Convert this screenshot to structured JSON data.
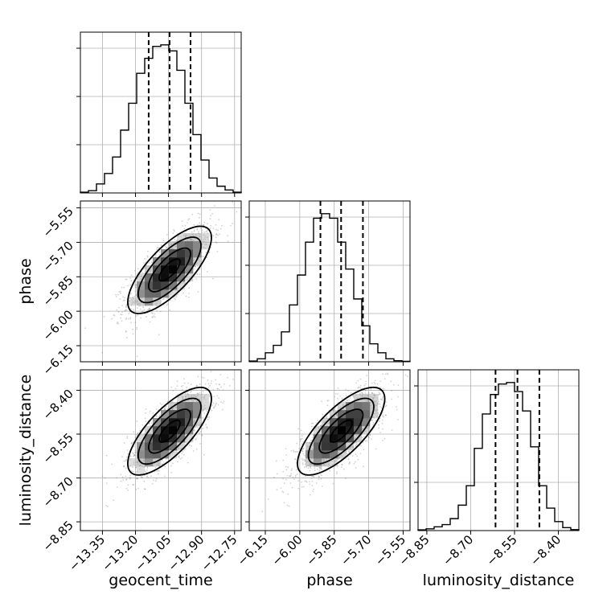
{
  "chart_data": {
    "type": "corner",
    "parameters": [
      {
        "key": "geocent_time",
        "label": "geocent_time",
        "range": [
          -13.45,
          -12.72
        ],
        "ticks": [
          -13.35,
          -13.2,
          -13.05,
          -12.9,
          -12.75
        ],
        "tick_labels": [
          "−13.35",
          "−13.20",
          "−13.05",
          "−12.90",
          "−12.75"
        ],
        "quantiles": [
          -13.14,
          -13.045,
          -12.95
        ],
        "hist_bin_edges": [
          -13.45,
          -13.4135,
          -13.377,
          -13.3405,
          -13.304,
          -13.2675,
          -13.231,
          -13.1945,
          -13.158,
          -13.1215,
          -13.085,
          -13.0485,
          -13.012,
          -12.9755,
          -12.939,
          -12.9025,
          -12.866,
          -12.8295,
          -12.793,
          -12.7565,
          -12.72
        ],
        "hist_density": [
          0.005,
          0.015,
          0.06,
          0.13,
          0.24,
          0.42,
          0.6,
          0.8,
          0.9,
          0.98,
          0.99,
          0.95,
          0.82,
          0.6,
          0.39,
          0.22,
          0.1,
          0.045,
          0.02,
          0.005
        ]
      },
      {
        "key": "phase",
        "label": "phase",
        "range": [
          -6.22,
          -5.52
        ],
        "ticks": [
          -6.15,
          -6.0,
          -5.85,
          -5.7,
          -5.55
        ],
        "tick_labels": [
          "−6.15",
          "−6.00",
          "−5.85",
          "−5.70",
          "−5.55"
        ],
        "quantiles": [
          -5.91,
          -5.82,
          -5.725
        ],
        "hist_bin_edges": [
          -6.22,
          -6.185,
          -6.15,
          -6.115,
          -6.08,
          -6.045,
          -6.01,
          -5.975,
          -5.94,
          -5.905,
          -5.87,
          -5.835,
          -5.8,
          -5.765,
          -5.73,
          -5.695,
          -5.66,
          -5.625,
          -5.59,
          -5.555,
          -5.52
        ],
        "hist_density": [
          0.005,
          0.02,
          0.06,
          0.11,
          0.2,
          0.38,
          0.58,
          0.8,
          0.96,
          0.99,
          0.96,
          0.8,
          0.62,
          0.42,
          0.24,
          0.12,
          0.06,
          0.02,
          0.007,
          0.003
        ]
      },
      {
        "key": "luminosity_distance",
        "label": "luminosity_distance",
        "range": [
          -8.88,
          -8.33
        ],
        "ticks": [
          -8.85,
          -8.7,
          -8.55,
          -8.4
        ],
        "tick_labels": [
          "−8.85",
          "−8.70",
          "−8.55",
          "−8.40"
        ],
        "quantiles": [
          -8.615,
          -8.54,
          -8.465
        ],
        "hist_bin_edges": [
          -8.88,
          -8.8525,
          -8.825,
          -8.7975,
          -8.77,
          -8.7425,
          -8.715,
          -8.6875,
          -8.66,
          -8.6325,
          -8.605,
          -8.5775,
          -8.55,
          -8.5225,
          -8.495,
          -8.4675,
          -8.44,
          -8.4125,
          -8.385,
          -8.3575,
          -8.33
        ],
        "hist_density": [
          0.005,
          0.012,
          0.025,
          0.04,
          0.08,
          0.17,
          0.3,
          0.55,
          0.78,
          0.91,
          0.98,
          0.99,
          0.93,
          0.8,
          0.56,
          0.3,
          0.15,
          0.06,
          0.02,
          0.006
        ]
      }
    ],
    "pairs": [
      {
        "x": "geocent_time",
        "y": "phase",
        "mean": [
          -13.045,
          -5.82
        ],
        "sd": [
          0.095,
          0.095
        ],
        "rho": 0.74
      },
      {
        "x": "geocent_time",
        "y": "luminosity_distance",
        "mean": [
          -13.045,
          -8.54
        ],
        "sd": [
          0.095,
          0.075
        ],
        "rho": 0.74
      },
      {
        "x": "phase",
        "y": "luminosity_distance",
        "mean": [
          -5.82,
          -8.54
        ],
        "sd": [
          0.095,
          0.075
        ],
        "rho": 0.74
      }
    ],
    "contour_levels_sigma": [
      0.5,
      1.0,
      1.5,
      2.0
    ],
    "grid": true,
    "legend": "none"
  }
}
